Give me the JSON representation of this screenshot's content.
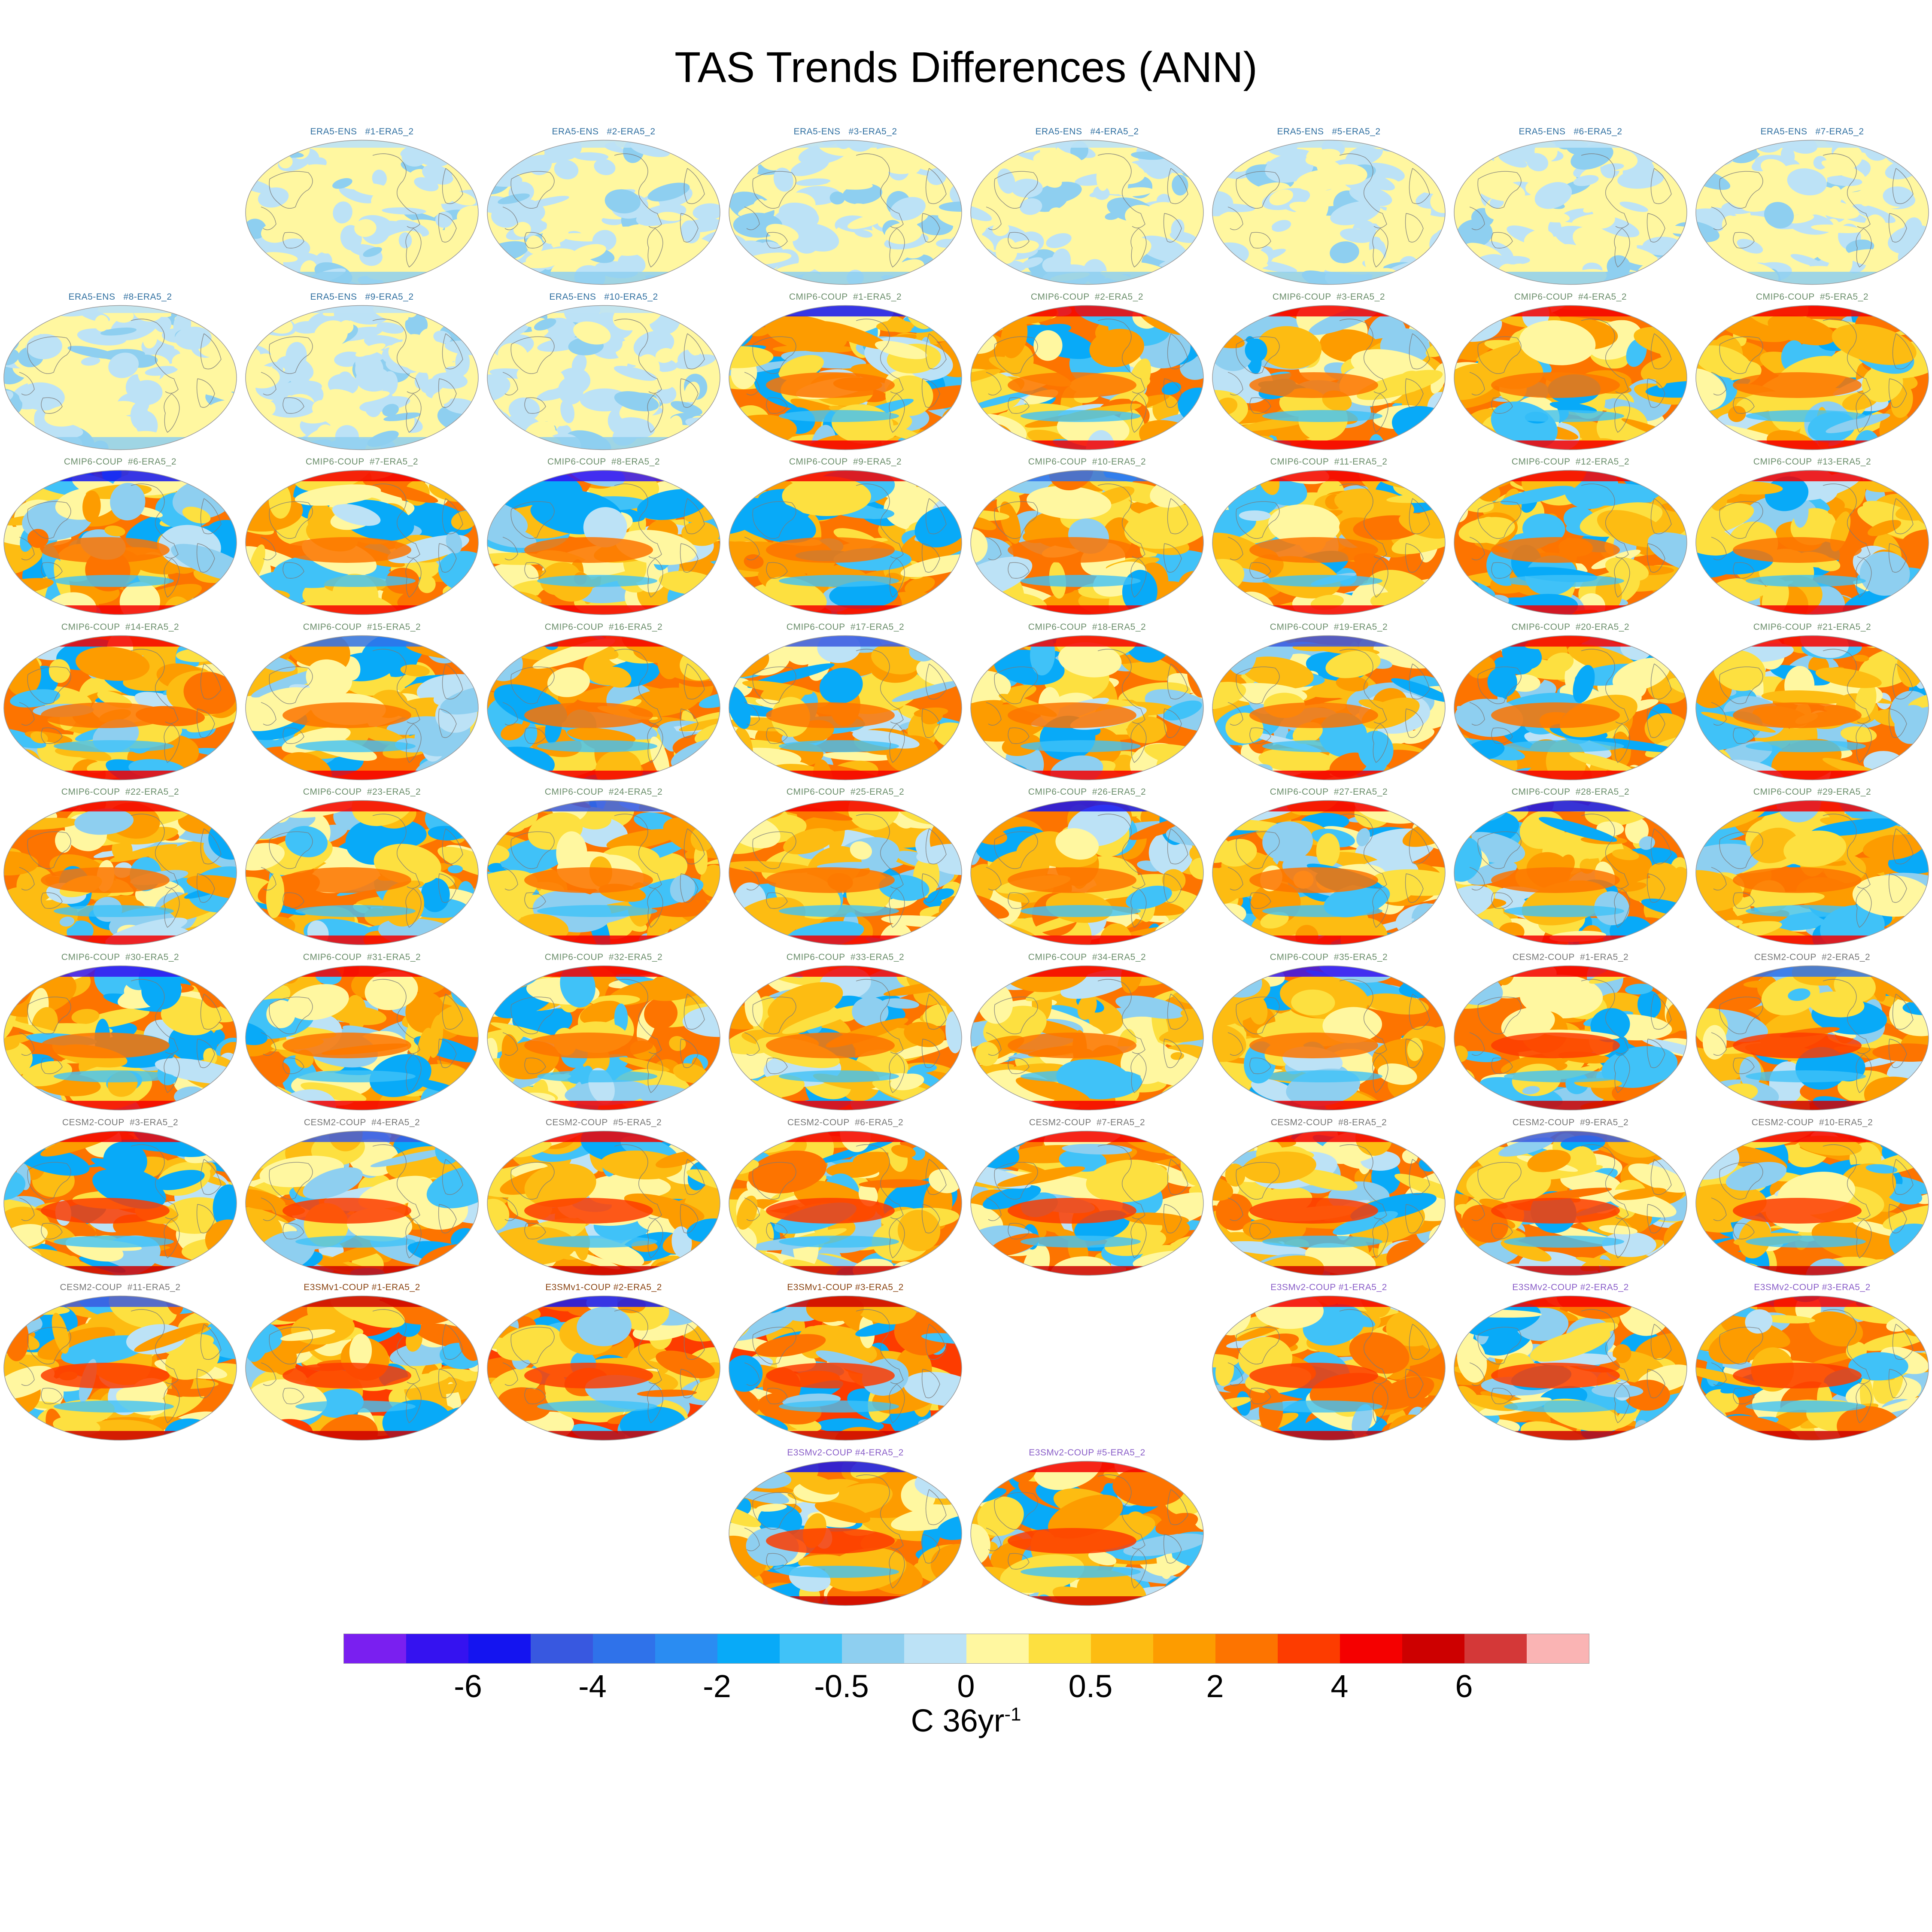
{
  "title": "TAS Trends Differences (ANN)",
  "colorbar": {
    "colors": [
      "#7a1ff0",
      "#3512f0",
      "#1414f0",
      "#3858e0",
      "#2f72ea",
      "#2a8cf2",
      "#08aaf8",
      "#40c2f8",
      "#8ecff0",
      "#bce2f6",
      "#fff7a0",
      "#fde040",
      "#fdbc12",
      "#fd9c00",
      "#fd7400",
      "#fd3c00",
      "#f50000",
      "#cd0000",
      "#d43838",
      "#fab4b4"
    ],
    "labels": [
      "-6",
      "-4",
      "-2",
      "-0.5",
      "0",
      "0.5",
      "2",
      "4",
      "6"
    ],
    "label_boundary_index": [
      2,
      4,
      6,
      8,
      10,
      12,
      14,
      16,
      18
    ],
    "units_main": "C 36yr",
    "units_sup": "-1"
  },
  "groups": {
    "ERA5-ENS": {
      "title_color": "#2f6fa0",
      "warm_level": 0.05
    },
    "CMIP6-COUP": {
      "title_color": "#6b8e6b",
      "warm_level": 0.55
    },
    "CESM2-COUP": {
      "title_color": "#777777",
      "warm_level": 0.62
    },
    "E3SMv1-COUP": {
      "title_color": "#8b4513",
      "warm_level": 0.72
    },
    "E3SMv2-COUP": {
      "title_color": "#8a5ec8",
      "warm_level": 0.6
    }
  },
  "panels": [
    {
      "title": "ERA5-ENS   #1-ERA5_2",
      "group": "ERA5-ENS"
    },
    {
      "title": "ERA5-ENS   #2-ERA5_2",
      "group": "ERA5-ENS"
    },
    {
      "title": "ERA5-ENS   #3-ERA5_2",
      "group": "ERA5-ENS"
    },
    {
      "title": "ERA5-ENS   #4-ERA5_2",
      "group": "ERA5-ENS"
    },
    {
      "title": "ERA5-ENS   #5-ERA5_2",
      "group": "ERA5-ENS"
    },
    {
      "title": "ERA5-ENS   #6-ERA5_2",
      "group": "ERA5-ENS"
    },
    {
      "title": "ERA5-ENS   #7-ERA5_2",
      "group": "ERA5-ENS"
    },
    {
      "title": "ERA5-ENS   #8-ERA5_2",
      "group": "ERA5-ENS"
    },
    {
      "title": "ERA5-ENS   #9-ERA5_2",
      "group": "ERA5-ENS"
    },
    {
      "title": "ERA5-ENS   #10-ERA5_2",
      "group": "ERA5-ENS"
    },
    {
      "title": "CMIP6-COUP  #1-ERA5_2",
      "group": "CMIP6-COUP"
    },
    {
      "title": "CMIP6-COUP  #2-ERA5_2",
      "group": "CMIP6-COUP"
    },
    {
      "title": "CMIP6-COUP  #3-ERA5_2",
      "group": "CMIP6-COUP"
    },
    {
      "title": "CMIP6-COUP  #4-ERA5_2",
      "group": "CMIP6-COUP"
    },
    {
      "title": "CMIP6-COUP  #5-ERA5_2",
      "group": "CMIP6-COUP"
    },
    {
      "title": "CMIP6-COUP  #6-ERA5_2",
      "group": "CMIP6-COUP"
    },
    {
      "title": "CMIP6-COUP  #7-ERA5_2",
      "group": "CMIP6-COUP"
    },
    {
      "title": "CMIP6-COUP  #8-ERA5_2",
      "group": "CMIP6-COUP"
    },
    {
      "title": "CMIP6-COUP  #9-ERA5_2",
      "group": "CMIP6-COUP"
    },
    {
      "title": "CMIP6-COUP  #10-ERA5_2",
      "group": "CMIP6-COUP"
    },
    {
      "title": "CMIP6-COUP  #11-ERA5_2",
      "group": "CMIP6-COUP"
    },
    {
      "title": "CMIP6-COUP  #12-ERA5_2",
      "group": "CMIP6-COUP"
    },
    {
      "title": "CMIP6-COUP  #13-ERA5_2",
      "group": "CMIP6-COUP"
    },
    {
      "title": "CMIP6-COUP  #14-ERA5_2",
      "group": "CMIP6-COUP"
    },
    {
      "title": "CMIP6-COUP  #15-ERA5_2",
      "group": "CMIP6-COUP"
    },
    {
      "title": "CMIP6-COUP  #16-ERA5_2",
      "group": "CMIP6-COUP"
    },
    {
      "title": "CMIP6-COUP  #17-ERA5_2",
      "group": "CMIP6-COUP"
    },
    {
      "title": "CMIP6-COUP  #18-ERA5_2",
      "group": "CMIP6-COUP"
    },
    {
      "title": "CMIP6-COUP  #19-ERA5_2",
      "group": "CMIP6-COUP"
    },
    {
      "title": "CMIP6-COUP  #20-ERA5_2",
      "group": "CMIP6-COUP"
    },
    {
      "title": "CMIP6-COUP  #21-ERA5_2",
      "group": "CMIP6-COUP"
    },
    {
      "title": "CMIP6-COUP  #22-ERA5_2",
      "group": "CMIP6-COUP"
    },
    {
      "title": "CMIP6-COUP  #23-ERA5_2",
      "group": "CMIP6-COUP"
    },
    {
      "title": "CMIP6-COUP  #24-ERA5_2",
      "group": "CMIP6-COUP"
    },
    {
      "title": "CMIP6-COUP  #25-ERA5_2",
      "group": "CMIP6-COUP"
    },
    {
      "title": "CMIP6-COUP  #26-ERA5_2",
      "group": "CMIP6-COUP"
    },
    {
      "title": "CMIP6-COUP  #27-ERA5_2",
      "group": "CMIP6-COUP"
    },
    {
      "title": "CMIP6-COUP  #28-ERA5_2",
      "group": "CMIP6-COUP"
    },
    {
      "title": "CMIP6-COUP  #29-ERA5_2",
      "group": "CMIP6-COUP"
    },
    {
      "title": "CMIP6-COUP  #30-ERA5_2",
      "group": "CMIP6-COUP"
    },
    {
      "title": "CMIP6-COUP  #31-ERA5_2",
      "group": "CMIP6-COUP"
    },
    {
      "title": "CMIP6-COUP  #32-ERA5_2",
      "group": "CMIP6-COUP"
    },
    {
      "title": "CMIP6-COUP  #33-ERA5_2",
      "group": "CMIP6-COUP"
    },
    {
      "title": "CMIP6-COUP  #34-ERA5_2",
      "group": "CMIP6-COUP"
    },
    {
      "title": "CMIP6-COUP  #35-ERA5_2",
      "group": "CMIP6-COUP"
    },
    {
      "title": "CESM2-COUP  #1-ERA5_2",
      "group": "CESM2-COUP"
    },
    {
      "title": "CESM2-COUP  #2-ERA5_2",
      "group": "CESM2-COUP"
    },
    {
      "title": "CESM2-COUP  #3-ERA5_2",
      "group": "CESM2-COUP"
    },
    {
      "title": "CESM2-COUP  #4-ERA5_2",
      "group": "CESM2-COUP"
    },
    {
      "title": "CESM2-COUP  #5-ERA5_2",
      "group": "CESM2-COUP"
    },
    {
      "title": "CESM2-COUP  #6-ERA5_2",
      "group": "CESM2-COUP"
    },
    {
      "title": "CESM2-COUP  #7-ERA5_2",
      "group": "CESM2-COUP"
    },
    {
      "title": "CESM2-COUP  #8-ERA5_2",
      "group": "CESM2-COUP"
    },
    {
      "title": "CESM2-COUP  #9-ERA5_2",
      "group": "CESM2-COUP"
    },
    {
      "title": "CESM2-COUP  #10-ERA5_2",
      "group": "CESM2-COUP"
    },
    {
      "title": "CESM2-COUP  #11-ERA5_2",
      "group": "CESM2-COUP"
    },
    {
      "title": "E3SMv1-COUP #1-ERA5_2",
      "group": "E3SMv1-COUP"
    },
    {
      "title": "E3SMv1-COUP #2-ERA5_2",
      "group": "E3SMv1-COUP"
    },
    {
      "title": "E3SMv1-COUP #3-ERA5_2",
      "group": "E3SMv1-COUP"
    },
    {
      "title": "E3SMv2-COUP #1-ERA5_2",
      "group": "E3SMv2-COUP"
    },
    {
      "title": "E3SMv2-COUP #2-ERA5_2",
      "group": "E3SMv2-COUP"
    },
    {
      "title": "E3SMv2-COUP #3-ERA5_2",
      "group": "E3SMv2-COUP"
    },
    {
      "title": "E3SMv2-COUP #4-ERA5_2",
      "group": "E3SMv2-COUP"
    },
    {
      "title": "E3SMv2-COUP #5-ERA5_2",
      "group": "E3SMv2-COUP"
    }
  ]
}
